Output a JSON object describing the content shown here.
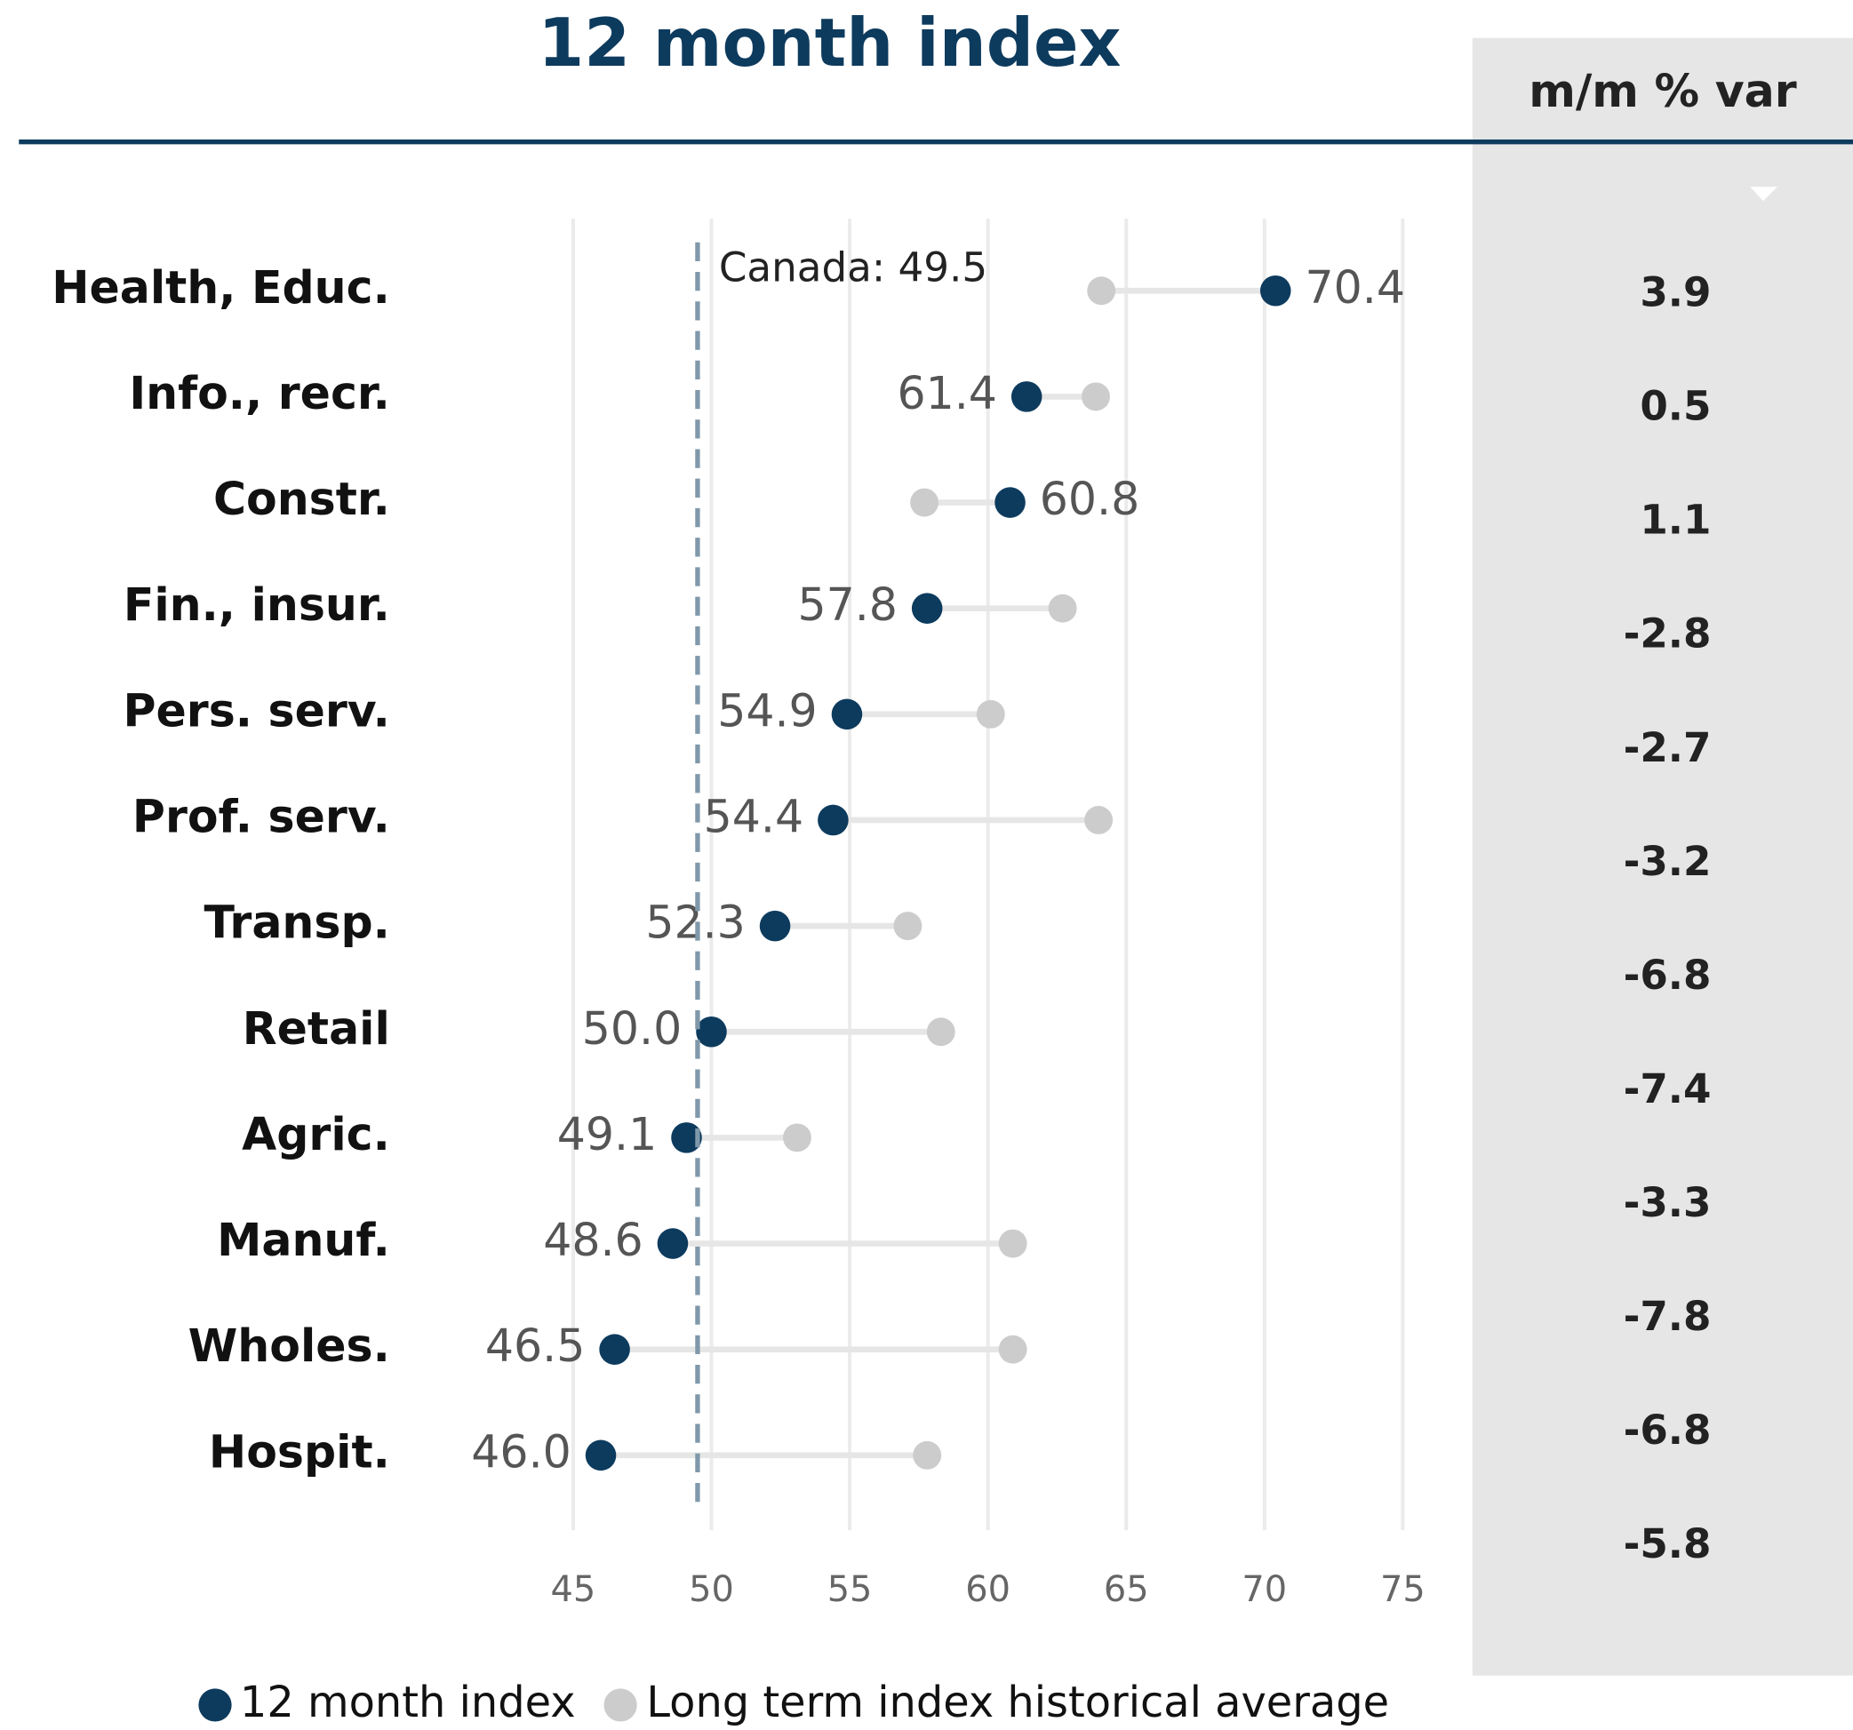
{
  "chart_data": {
    "type": "dumbbell",
    "title": "12 month index",
    "categories": [
      "Health, Educ.",
      "Info., recr.",
      "Constr.",
      "Fin., insur.",
      "Pers. serv.",
      "Prof. serv.",
      "Transp.",
      "Retail",
      "Agric.",
      "Manuf.",
      "Wholes.",
      "Hospit."
    ],
    "series": [
      {
        "name": "12 month index",
        "color": "#0d3b5e",
        "values": [
          70.4,
          61.4,
          60.8,
          57.8,
          54.9,
          54.4,
          52.3,
          50.0,
          49.1,
          48.6,
          46.5,
          46.0
        ],
        "value_labels": [
          "70.4",
          "61.4",
          "60.8",
          "57.8",
          "54.9",
          "54.4",
          "52.3",
          "50.0",
          "49.1",
          "48.6",
          "46.5",
          "46.0"
        ]
      },
      {
        "name": "Long term index historical average",
        "color": "#cccccc",
        "values": [
          64.1,
          63.9,
          57.7,
          62.7,
          60.1,
          64.0,
          57.1,
          58.3,
          53.1,
          60.9,
          60.9,
          57.8
        ]
      }
    ],
    "xlim": [
      45,
      75
    ],
    "xticks": [
      45,
      50,
      55,
      60,
      65,
      70,
      75
    ],
    "grid": true,
    "reference_line": {
      "value": 49.5,
      "label": "Canada: 49.5"
    },
    "side_column": {
      "title": "m/m % var",
      "values": [
        3.9,
        0.5,
        1.1,
        -2.8,
        -2.7,
        -3.2,
        -6.8,
        -7.4,
        -3.3,
        -7.8,
        -6.8,
        -5.8
      ]
    }
  }
}
